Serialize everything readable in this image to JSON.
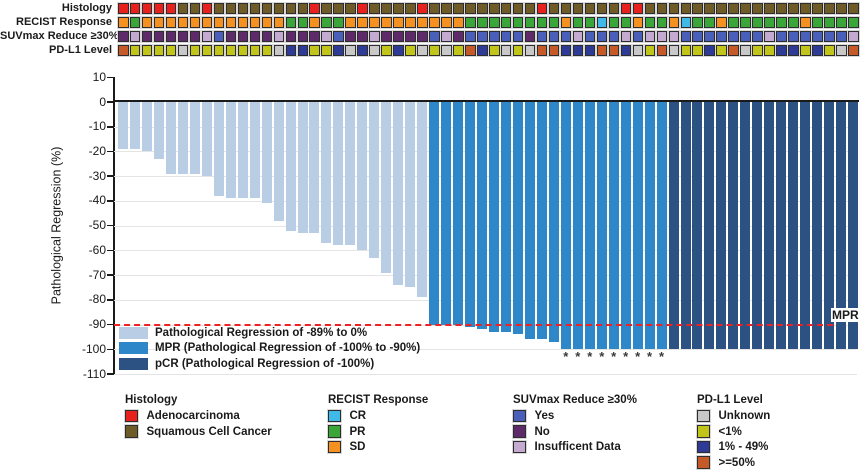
{
  "figure": {
    "tracks": {
      "rows": [
        {
          "id": "histology",
          "label": "Histology"
        },
        {
          "id": "recist",
          "label": "RECIST Response"
        },
        {
          "id": "suvmax",
          "label": "SUVmax Reduce ≥30%"
        },
        {
          "id": "pdl1",
          "label": "PD-L1 Level"
        }
      ]
    },
    "y_axis_label": "Pathological Regression (%)",
    "mpr_annotation": "MPR",
    "chart_legend": [
      {
        "key": "reg",
        "label": "Pathological Regression of -89% to 0%",
        "color": "#B9CDE5"
      },
      {
        "key": "mpr",
        "label": "MPR (Pathological Regression of -100% to -90%)",
        "color": "#2E87C8"
      },
      {
        "key": "pcr",
        "label": "pCR (Pathological Regression of -100%)",
        "color": "#2C5183"
      }
    ],
    "bottom_legend": [
      {
        "title": "Histology",
        "items": [
          {
            "code": "ADC",
            "label": "Adenocarcinoma",
            "color": "#E8201E"
          },
          {
            "code": "SCC",
            "label": "Squamous Cell Cancer",
            "color": "#6F5B28"
          }
        ]
      },
      {
        "title": "RECIST Response",
        "items": [
          {
            "code": "CR",
            "label": "CR",
            "color": "#3FB9E8"
          },
          {
            "code": "PR",
            "label": "PR",
            "color": "#3AA63A"
          },
          {
            "code": "SD",
            "label": "SD",
            "color": "#F59120"
          }
        ]
      },
      {
        "title": "SUVmax Reduce ≥30%",
        "items": [
          {
            "code": "Yes",
            "label": "Yes",
            "color": "#4A5FB9"
          },
          {
            "code": "No",
            "label": "No",
            "color": "#5E2A69"
          },
          {
            "code": "ID",
            "label": "Insufficent Data",
            "color": "#C4A9D1"
          }
        ]
      },
      {
        "title": "PD-L1 Level",
        "items": [
          {
            "code": "UNK",
            "label": "Unknown",
            "color": "#C8C8C8"
          },
          {
            "code": "LT1",
            "label": "<1%",
            "color": "#C1C519"
          },
          {
            "code": "B49",
            "label": "1% - 49%",
            "color": "#2D3B97"
          },
          {
            "code": "GE50",
            "label": ">=50%",
            "color": "#C55A28"
          }
        ]
      }
    ]
  },
  "chart_data": {
    "type": "bar",
    "title": "",
    "xlabel": "",
    "ylabel": "Pathological Regression (%)",
    "ylim": [
      -110,
      10
    ],
    "yticks": [
      10,
      0,
      -10,
      -20,
      -30,
      -40,
      -50,
      -60,
      -70,
      -80,
      -90,
      -100,
      -110
    ],
    "grid": "horizontal",
    "legend_position": "lower-left-inside",
    "n_patients": 62,
    "mpr_threshold": -90,
    "values": [
      -19,
      -19,
      -20,
      -23,
      -29,
      -29,
      -29,
      -30,
      -38,
      -39,
      -39,
      -39,
      -41,
      -48,
      -52,
      -53,
      -53,
      -57,
      -58,
      -58,
      -60,
      -63,
      -69,
      -74,
      -75,
      -79,
      -90,
      -90,
      -90,
      -91,
      -92,
      -93,
      -93,
      -94,
      -96,
      -96,
      -97,
      -100,
      -100,
      -100,
      -100,
      -100,
      -100,
      -100,
      -100,
      -100,
      -100,
      -100,
      -100,
      -100,
      -100,
      -100,
      -100,
      -100,
      -100,
      -100,
      -100,
      -100,
      -100,
      -100,
      -100,
      -100
    ],
    "bar_groups": [
      "reg",
      "reg",
      "reg",
      "reg",
      "reg",
      "reg",
      "reg",
      "reg",
      "reg",
      "reg",
      "reg",
      "reg",
      "reg",
      "reg",
      "reg",
      "reg",
      "reg",
      "reg",
      "reg",
      "reg",
      "reg",
      "reg",
      "reg",
      "reg",
      "reg",
      "reg",
      "mpr",
      "mpr",
      "mpr",
      "mpr",
      "mpr",
      "mpr",
      "mpr",
      "mpr",
      "mpr",
      "mpr",
      "mpr",
      "mpr",
      "mpr",
      "mpr",
      "mpr",
      "mpr",
      "mpr",
      "mpr",
      "mpr",
      "mpr",
      "pcr",
      "pcr",
      "pcr",
      "pcr",
      "pcr",
      "pcr",
      "pcr",
      "pcr",
      "pcr",
      "pcr",
      "pcr",
      "pcr",
      "pcr",
      "pcr",
      "pcr",
      "pcr"
    ],
    "asterisk_bars": [
      38,
      39,
      40,
      41,
      42,
      43,
      44,
      45,
      46
    ],
    "tracks": {
      "histology": [
        "ADC",
        "ADC",
        "ADC",
        "ADC",
        "ADC",
        "SCC",
        "SCC",
        "ADC",
        "SCC",
        "SCC",
        "SCC",
        "SCC",
        "SCC",
        "SCC",
        "SCC",
        "SCC",
        "ADC",
        "SCC",
        "SCC",
        "SCC",
        "ADC",
        "SCC",
        "SCC",
        "SCC",
        "SCC",
        "ADC",
        "SCC",
        "SCC",
        "SCC",
        "SCC",
        "SCC",
        "SCC",
        "SCC",
        "SCC",
        "SCC",
        "ADC",
        "SCC",
        "SCC",
        "SCC",
        "SCC",
        "SCC",
        "SCC",
        "ADC",
        "ADC",
        "SCC",
        "SCC",
        "SCC",
        "SCC",
        "SCC",
        "SCC",
        "SCC",
        "SCC",
        "SCC",
        "SCC",
        "SCC",
        "SCC",
        "SCC",
        "SCC",
        "SCC",
        "SCC",
        "SCC",
        "SCC"
      ],
      "recist": [
        "SD",
        "PR",
        "SD",
        "SD",
        "SD",
        "SD",
        "SD",
        "SD",
        "SD",
        "SD",
        "SD",
        "SD",
        "SD",
        "SD",
        "PR",
        "PR",
        "SD",
        "PR",
        "PR",
        "SD",
        "SD",
        "SD",
        "SD",
        "SD",
        "SD",
        "SD",
        "SD",
        "SD",
        "SD",
        "PR",
        "PR",
        "PR",
        "PR",
        "PR",
        "PR",
        "PR",
        "PR",
        "SD",
        "PR",
        "PR",
        "CR",
        "PR",
        "PR",
        "SD",
        "PR",
        "PR",
        "SD",
        "CR",
        "PR",
        "PR",
        "SD",
        "PR",
        "PR",
        "PR",
        "PR",
        "PR",
        "PR",
        "SD",
        "PR",
        "PR",
        "PR",
        "PR"
      ],
      "suvmax": [
        "No",
        "ID",
        "No",
        "No",
        "No",
        "No",
        "No",
        "ID",
        "Yes",
        "No",
        "No",
        "No",
        "No",
        "ID",
        "No",
        "No",
        "No",
        "ID",
        "Yes",
        "No",
        "No",
        "ID",
        "No",
        "No",
        "No",
        "No",
        "Yes",
        "ID",
        "No",
        "Yes",
        "Yes",
        "Yes",
        "Yes",
        "Yes",
        "No",
        "Yes",
        "Yes",
        "Yes",
        "ID",
        "Yes",
        "Yes",
        "Yes",
        "ID",
        "Yes",
        "ID",
        "ID",
        "ID",
        "Yes",
        "Yes",
        "Yes",
        "Yes",
        "Yes",
        "Yes",
        "Yes",
        "ID",
        "Yes",
        "Yes",
        "Yes",
        "Yes",
        "Yes",
        "Yes",
        "ID"
      ],
      "pdl1": [
        "GE50",
        "LT1",
        "LT1",
        "LT1",
        "LT1",
        "UNK",
        "LT1",
        "LT1",
        "LT1",
        "LT1",
        "LT1",
        "LT1",
        "LT1",
        "UNK",
        "B49",
        "B49",
        "LT1",
        "LT1",
        "B49",
        "UNK",
        "B49",
        "UNK",
        "LT1",
        "B49",
        "LT1",
        "UNK",
        "LT1",
        "UNK",
        "LT1",
        "GE50",
        "B49",
        "LT1",
        "UNK",
        "LT1",
        "UNK",
        "GE50",
        "GE50",
        "B49",
        "B49",
        "B49",
        "GE50",
        "GE50",
        "B49",
        "UNK",
        "LT1",
        "GE50",
        "UNK",
        "LT1",
        "LT1",
        "B49",
        "LT1",
        "GE50",
        "UNK",
        "LT1",
        "LT1",
        "B49",
        "B49",
        "LT1",
        "B49",
        "LT1",
        "UNK",
        "GE50"
      ]
    }
  },
  "colors": {
    "bar_reg": "#B9CDE5",
    "bar_mpr": "#2E87C8",
    "bar_pcr": "#2C5183",
    "mpr_line": "#EC2224",
    "grid": "#E4E4E4",
    "axis": "#1A1A1A",
    "track_histology": {
      "ADC": "#E8201E",
      "SCC": "#6F5B28"
    },
    "track_recist": {
      "CR": "#3FB9E8",
      "PR": "#3AA63A",
      "SD": "#F59120"
    },
    "track_suvmax": {
      "Yes": "#4A5FB9",
      "No": "#5E2A69",
      "ID": "#C4A9D1"
    },
    "track_pdl1": {
      "UNK": "#C8C8C8",
      "LT1": "#C1C519",
      "B49": "#2D3B97",
      "GE50": "#C55A28"
    }
  }
}
